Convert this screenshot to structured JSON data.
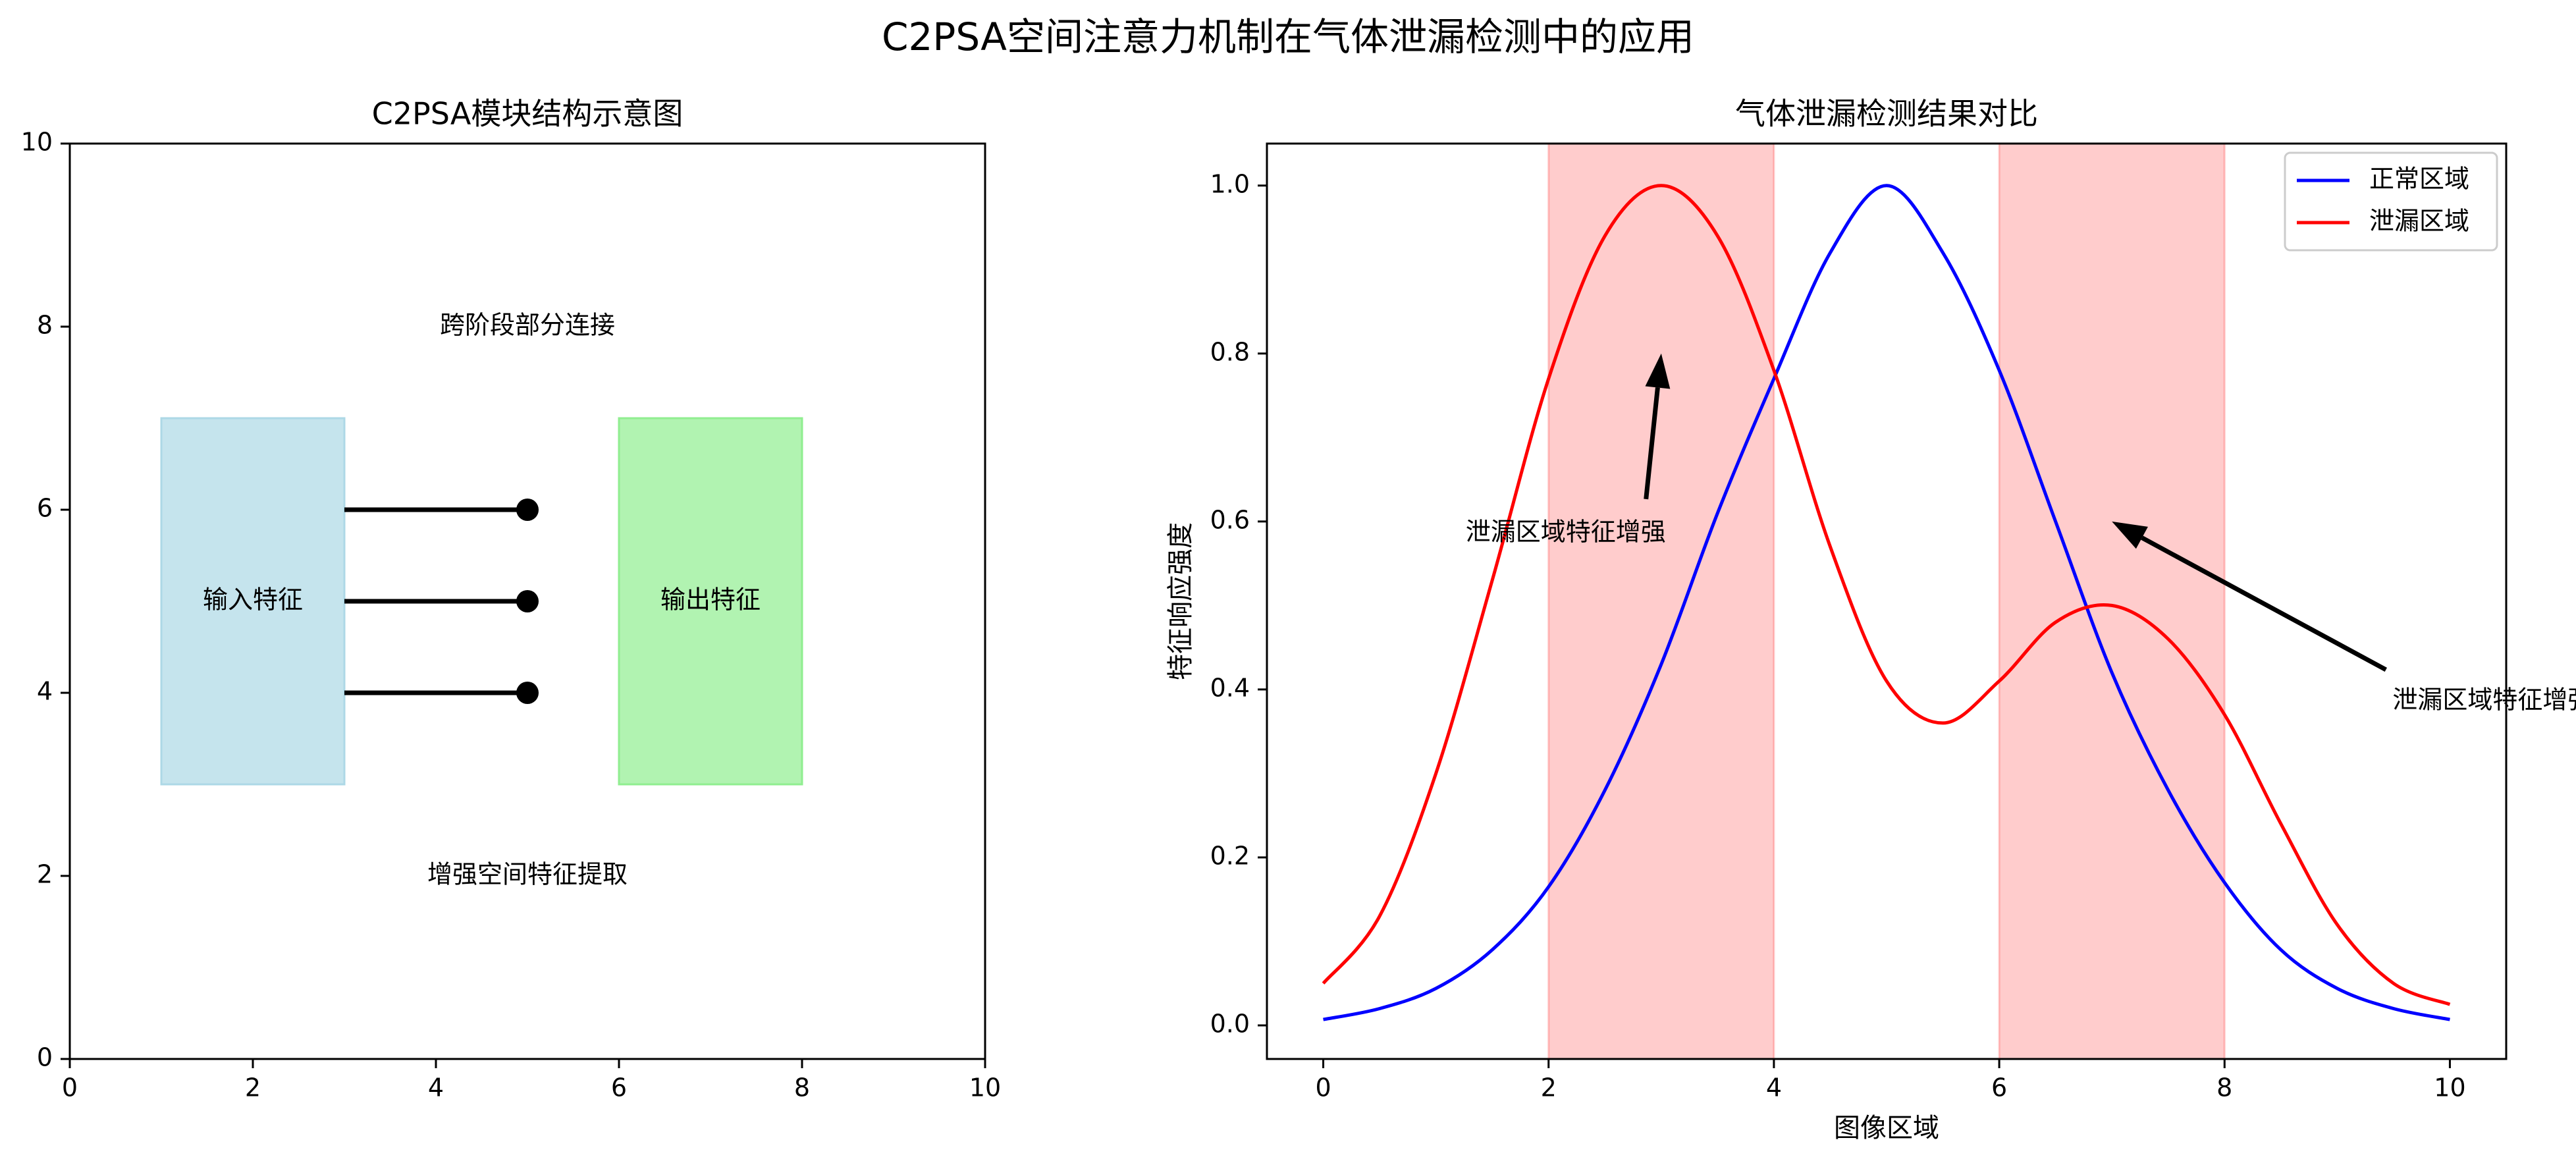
{
  "figure_title": "C2PSA空间注意力机制在气体泄漏检测中的应用",
  "chart_data": [
    {
      "type": "diagram",
      "title": "C2PSA模块结构示意图",
      "xlim": [
        0,
        10
      ],
      "ylim": [
        0,
        10
      ],
      "xticks": [
        0,
        2,
        4,
        6,
        8,
        10
      ],
      "yticks": [
        0,
        2,
        4,
        6,
        8,
        10
      ],
      "boxes": [
        {
          "label": "输入特征",
          "x": [
            1,
            3
          ],
          "y": [
            3,
            7
          ],
          "color": "#add8e6"
        },
        {
          "label": "输出特征",
          "x": [
            6,
            8
          ],
          "y": [
            3,
            7
          ],
          "color": "#90ee90"
        }
      ],
      "connections": [
        {
          "x": [
            3,
            5
          ],
          "y": 6
        },
        {
          "x": [
            3,
            5
          ],
          "y": 5
        },
        {
          "x": [
            3,
            5
          ],
          "y": 4
        }
      ],
      "annotations": [
        {
          "text": "跨阶段部分连接",
          "x": 5,
          "y": 8
        },
        {
          "text": "增强空间特征提取",
          "x": 5,
          "y": 2
        }
      ]
    },
    {
      "type": "line",
      "title": "气体泄漏检测结果对比",
      "xlabel": "图像区域",
      "ylabel": "特征响应强度",
      "xlim": [
        -0.5,
        10.5
      ],
      "ylim": [
        -0.04,
        1.05
      ],
      "xticks": [
        0,
        2,
        4,
        6,
        8,
        10
      ],
      "yticks": [
        0.0,
        0.2,
        0.4,
        0.6,
        0.8,
        1.0
      ],
      "legend_position": "top-right",
      "shaded_regions": [
        [
          2,
          4
        ],
        [
          6,
          8
        ]
      ],
      "series": [
        {
          "name": "正常区域",
          "color": "#0000ff",
          "x": [
            0,
            0.5,
            1,
            1.5,
            2,
            2.5,
            3,
            3.5,
            4,
            4.5,
            5,
            5.5,
            6,
            6.5,
            7,
            7.5,
            8,
            8.5,
            9,
            9.5,
            10
          ],
          "y": [
            0.007,
            0.02,
            0.044,
            0.09,
            0.165,
            0.28,
            0.43,
            0.61,
            0.77,
            0.92,
            1.0,
            0.92,
            0.78,
            0.6,
            0.42,
            0.28,
            0.17,
            0.09,
            0.044,
            0.02,
            0.007
          ]
        },
        {
          "name": "泄漏区域",
          "color": "#ff0000",
          "x": [
            0,
            0.5,
            1,
            1.5,
            2,
            2.5,
            3,
            3.5,
            4,
            4.5,
            5,
            5.5,
            6,
            6.5,
            7,
            7.5,
            8,
            8.5,
            9,
            9.5,
            10
          ],
          "y": [
            0.05,
            0.13,
            0.3,
            0.53,
            0.77,
            0.94,
            1.0,
            0.94,
            0.78,
            0.57,
            0.41,
            0.36,
            0.41,
            0.48,
            0.5,
            0.46,
            0.37,
            0.24,
            0.12,
            0.05,
            0.025
          ]
        }
      ],
      "annotations": [
        {
          "text": "泄漏区域特征增强",
          "xy": [
            3,
            0.8
          ],
          "text_xy": [
            2.9,
            0.6
          ]
        },
        {
          "text": "泄漏区域特征增强",
          "xy": [
            7,
            0.6
          ],
          "text_xy": [
            9.9,
            0.4
          ]
        }
      ]
    }
  ]
}
